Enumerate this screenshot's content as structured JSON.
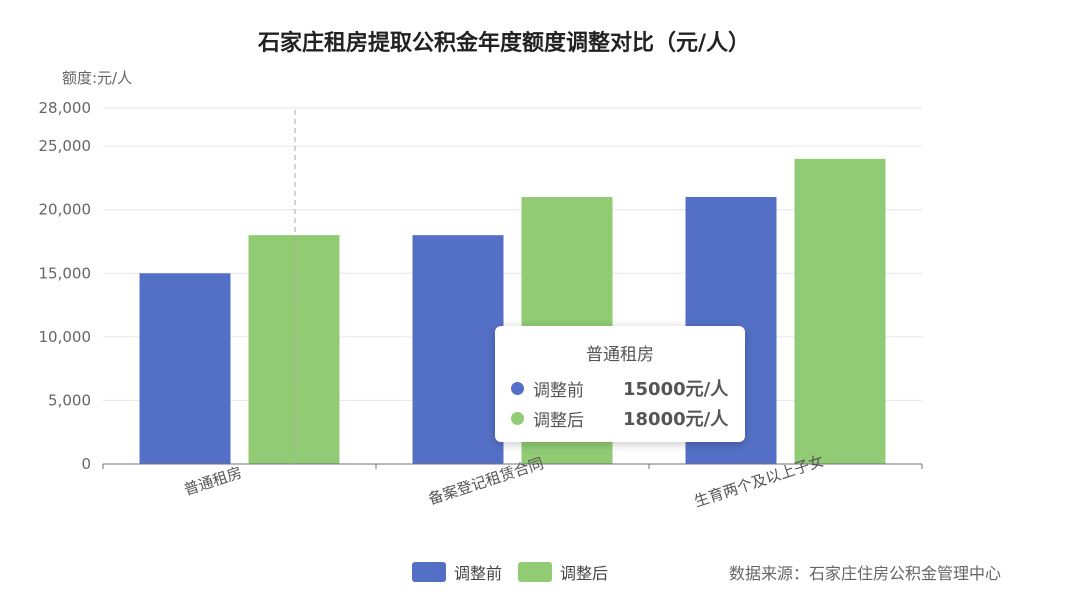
{
  "chart_data": {
    "type": "bar",
    "title": "石家庄租房提取公积金年度额度调整对比（元/人）",
    "ylabel": "额度:元/人",
    "categories": [
      "普通租房",
      "备案登记租赁合同",
      "生育两个及以上子女"
    ],
    "series": [
      {
        "name": "调整前",
        "values": [
          15000,
          18000,
          21000
        ],
        "color": "#5470c6"
      },
      {
        "name": "调整后",
        "values": [
          18000,
          21000,
          24000
        ],
        "color": "#91cc75"
      }
    ],
    "ylim": [
      0,
      28000
    ],
    "yticks": [
      0,
      5000,
      10000,
      15000,
      20000,
      25000,
      28000
    ],
    "ytick_labels": [
      "0",
      "5,000",
      "10,000",
      "15,000",
      "20,000",
      "25,000",
      "28,000"
    ],
    "grid": true,
    "legend_position": "bottom-center"
  },
  "tooltip": {
    "title": "普通租房",
    "rows": [
      {
        "name": "调整前",
        "value": "15000元/人",
        "color": "#5470c6"
      },
      {
        "name": "调整后",
        "value": "18000元/人",
        "color": "#91cc75"
      }
    ]
  },
  "source": "数据来源：石家庄住房公积金管理中心"
}
